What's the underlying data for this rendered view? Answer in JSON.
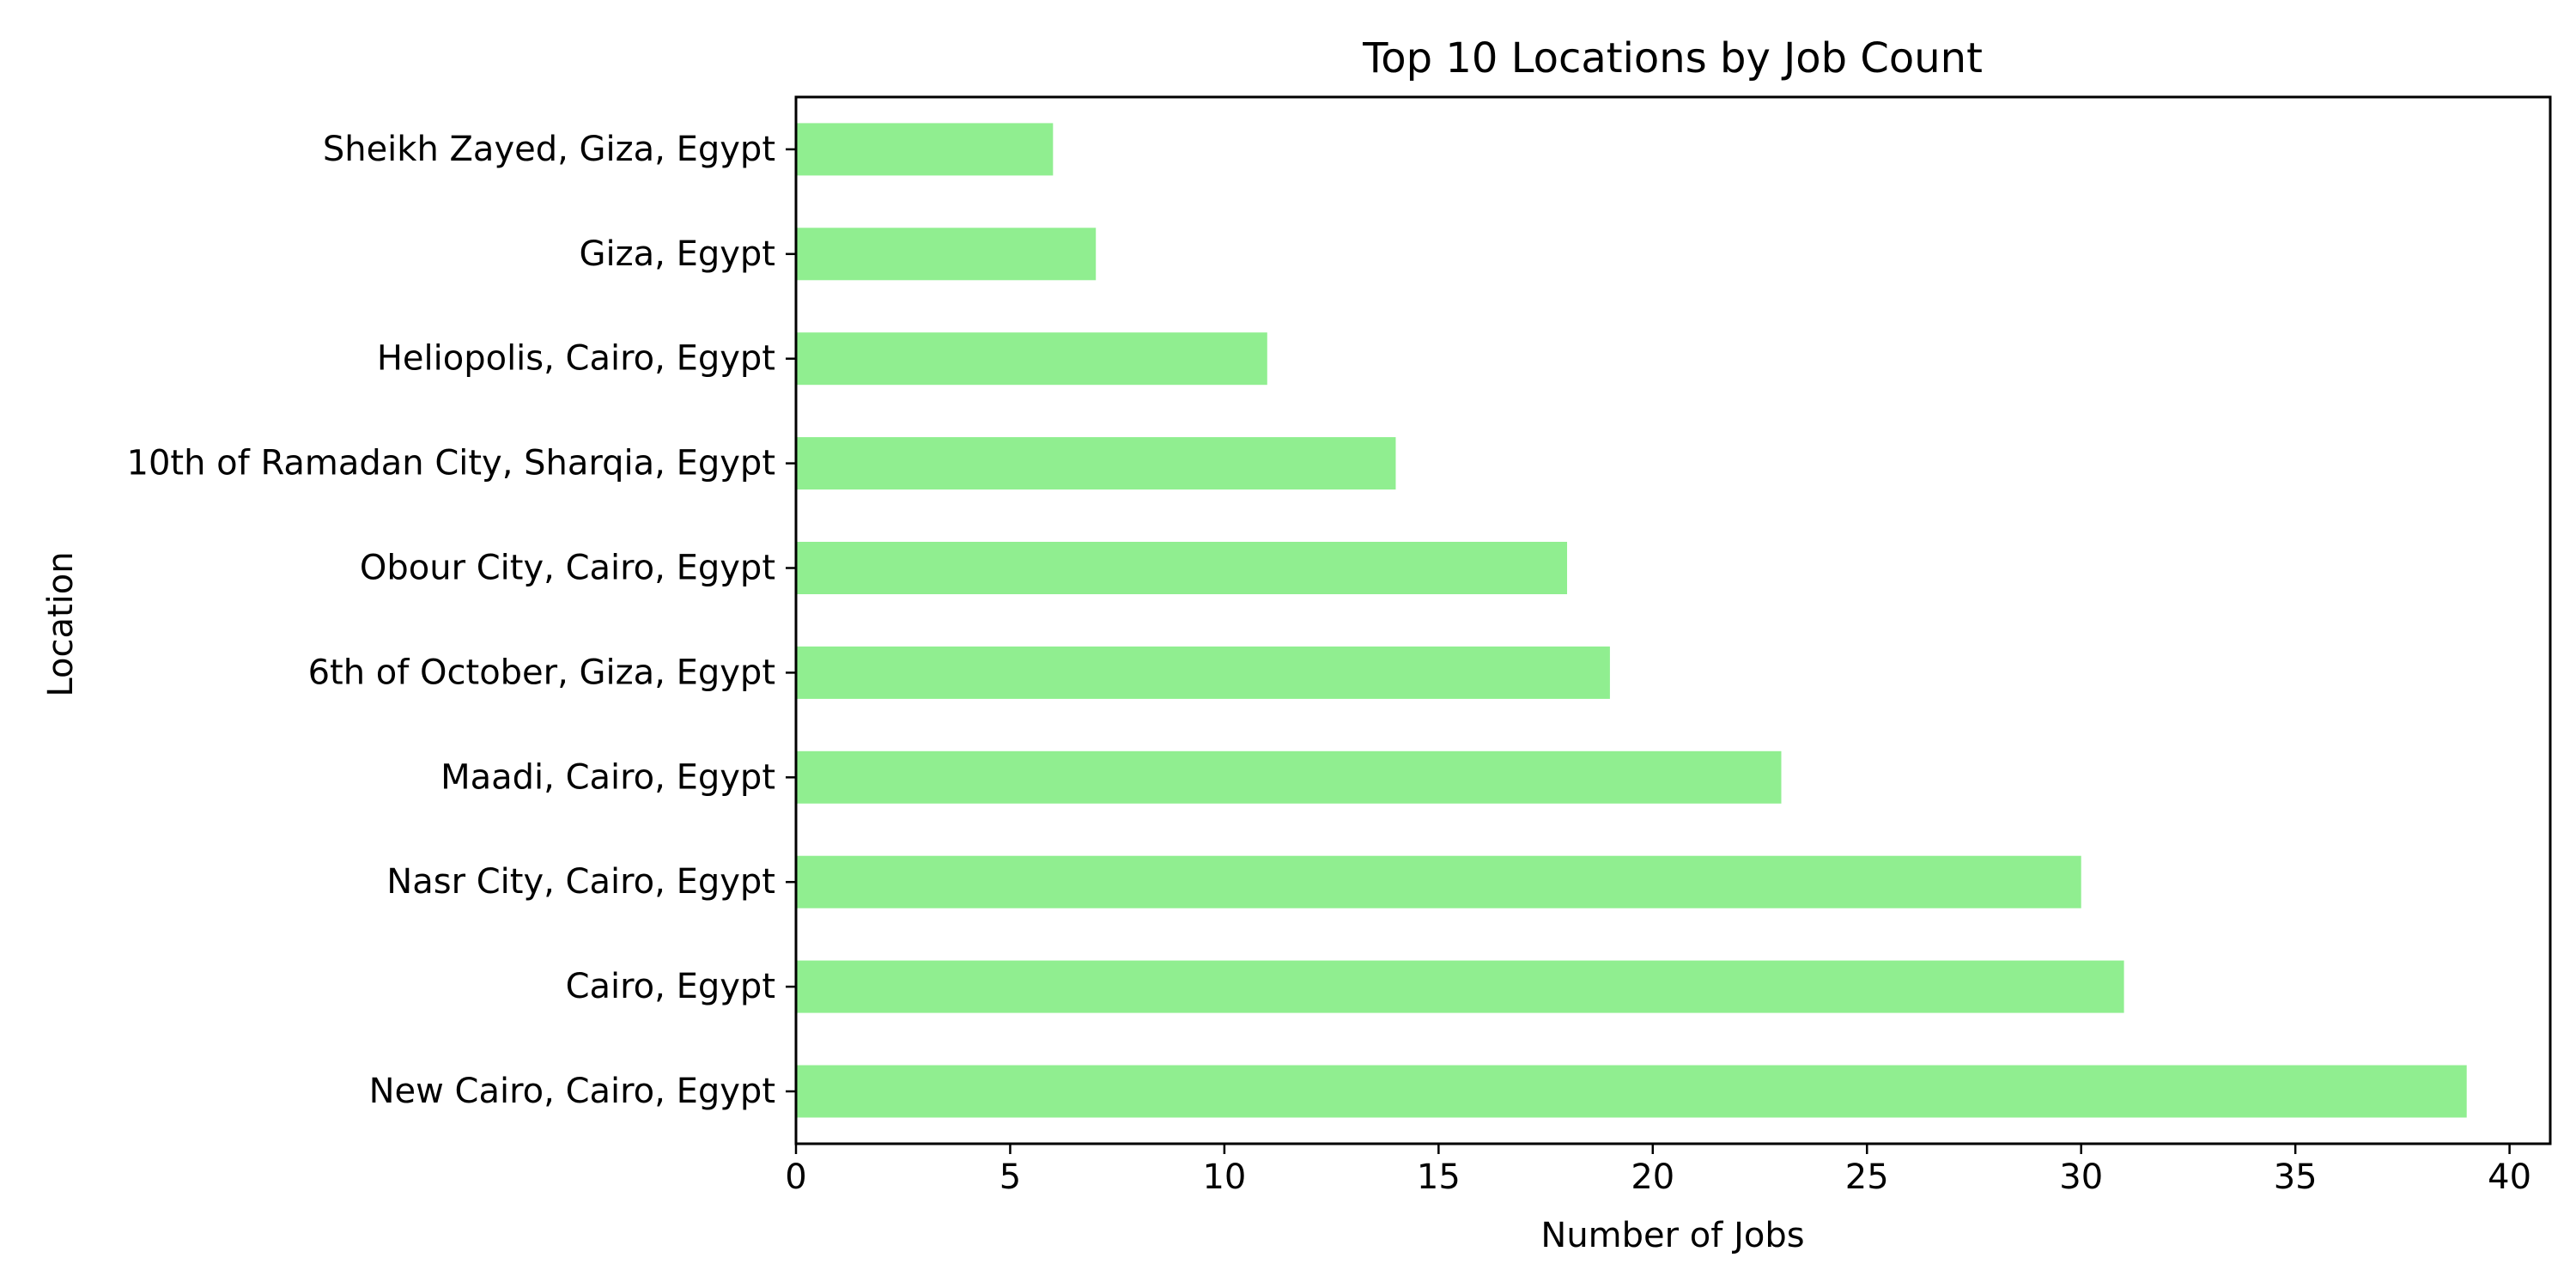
{
  "chart_data": {
    "type": "bar",
    "orientation": "horizontal",
    "title": "Top 10 Locations by Job Count",
    "xlabel": "Number of Jobs",
    "ylabel": "Location",
    "categories": [
      "New Cairo, Cairo, Egypt",
      "Cairo, Egypt",
      "Nasr City, Cairo, Egypt",
      "Maadi, Cairo, Egypt",
      "6th of October, Giza, Egypt",
      "Obour City, Cairo, Egypt",
      "10th of Ramadan City, Sharqia, Egypt",
      "Heliopolis, Cairo, Egypt",
      "Giza, Egypt",
      "Sheikh Zayed, Giza, Egypt"
    ],
    "values": [
      39,
      31,
      30,
      23,
      19,
      18,
      14,
      11,
      7,
      6
    ],
    "xlim": [
      0,
      40.95
    ],
    "xticks": [
      0,
      5,
      10,
      15,
      20,
      25,
      30,
      35,
      40
    ],
    "bar_color": "#90ee90",
    "grid": false,
    "legend": "none"
  }
}
